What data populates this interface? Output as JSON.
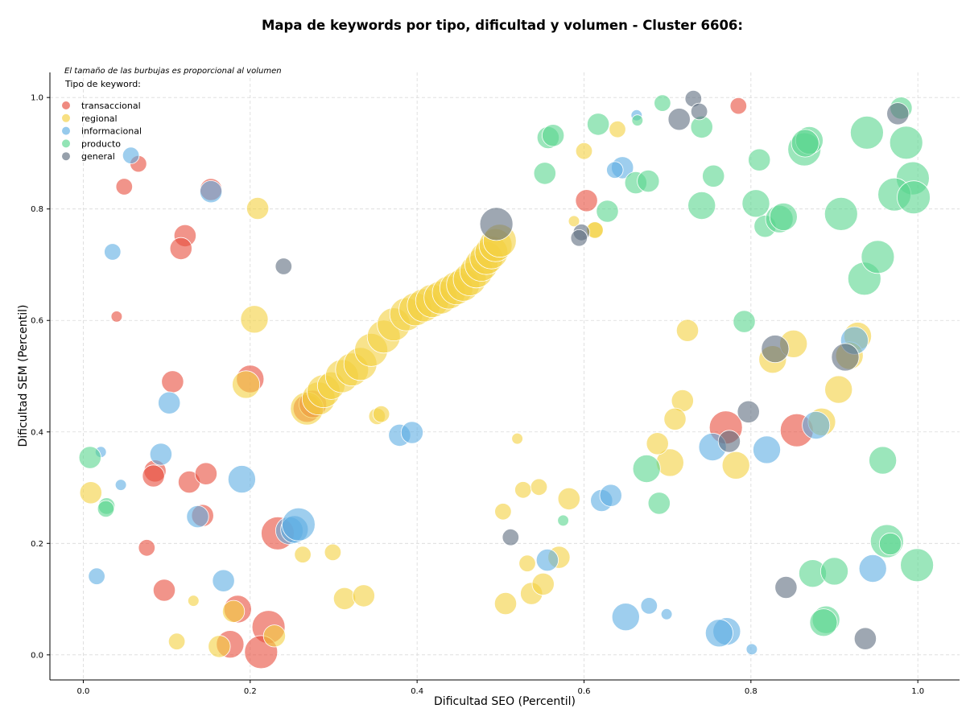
{
  "chart_data": {
    "type": "scatter",
    "title": "Mapa de keywords por tipo, dificultad y volumen - Cluster 6606:",
    "xlabel": "Dificultad SEO (Percentil)",
    "ylabel": "Dificultad SEM (Percentil)",
    "xlim": [
      -0.04,
      1.05
    ],
    "ylim": [
      -0.045,
      1.045
    ],
    "xticks": [
      "0.0",
      "0.2",
      "0.4",
      "0.6",
      "0.8",
      "1.0"
    ],
    "yticks": [
      "0.0",
      "0.2",
      "0.4",
      "0.6",
      "0.8",
      "1.0"
    ],
    "grid": true,
    "legend_placement": "top-left",
    "size_note": "El tamaño de las burbujas es proporcional al volumen",
    "legend_title": "Tipo de keyword:",
    "series": [
      {
        "name": "transaccional",
        "color": "#e74c3c",
        "points": [
          [
            0.066,
            0.881,
            2
          ],
          [
            0.049,
            0.84,
            2
          ],
          [
            0.153,
            0.835,
            3
          ],
          [
            0.122,
            0.752,
            3
          ],
          [
            0.117,
            0.729,
            3
          ],
          [
            0.04,
            0.607,
            1
          ],
          [
            0.107,
            0.49,
            3
          ],
          [
            0.2,
            0.495,
            4
          ],
          [
            0.268,
            0.442,
            4
          ],
          [
            0.275,
            0.45,
            4
          ],
          [
            0.086,
            0.33,
            3
          ],
          [
            0.084,
            0.321,
            3
          ],
          [
            0.127,
            0.31,
            3
          ],
          [
            0.147,
            0.325,
            3
          ],
          [
            0.143,
            0.25,
            3
          ],
          [
            0.233,
            0.218,
            5
          ],
          [
            0.076,
            0.192,
            2
          ],
          [
            0.097,
            0.116,
            3
          ],
          [
            0.185,
            0.082,
            4
          ],
          [
            0.222,
            0.05,
            5
          ],
          [
            0.176,
            0.019,
            4
          ],
          [
            0.213,
            0.005,
            5
          ],
          [
            0.603,
            0.815,
            3
          ],
          [
            0.785,
            0.985,
            2
          ],
          [
            0.77,
            0.408,
            5
          ],
          [
            0.855,
            0.403,
            5
          ]
        ]
      },
      {
        "name": "regional",
        "color": "#f4d03f",
        "points": [
          [
            0.209,
            0.801,
            3
          ],
          [
            0.205,
            0.602,
            4
          ],
          [
            0.195,
            0.485,
            4
          ],
          [
            0.009,
            0.291,
            3
          ],
          [
            0.263,
            0.18,
            2
          ],
          [
            0.299,
            0.184,
            2
          ],
          [
            0.313,
            0.101,
            3
          ],
          [
            0.336,
            0.106,
            3
          ],
          [
            0.18,
            0.078,
            3
          ],
          [
            0.229,
            0.034,
            3
          ],
          [
            0.163,
            0.015,
            3
          ],
          [
            0.112,
            0.024,
            2
          ],
          [
            0.132,
            0.097,
            1
          ],
          [
            0.352,
            0.428,
            2
          ],
          [
            0.357,
            0.432,
            2
          ],
          [
            0.52,
            0.388,
            1
          ],
          [
            0.503,
            0.257,
            2
          ],
          [
            0.527,
            0.296,
            2
          ],
          [
            0.546,
            0.301,
            2
          ],
          [
            0.582,
            0.28,
            3
          ],
          [
            0.532,
            0.164,
            2
          ],
          [
            0.537,
            0.11,
            3
          ],
          [
            0.551,
            0.127,
            3
          ],
          [
            0.57,
            0.175,
            3
          ],
          [
            0.506,
            0.092,
            3
          ],
          [
            0.613,
            0.763,
            2
          ],
          [
            0.613,
            0.762,
            2
          ],
          [
            0.6,
            0.904,
            2
          ],
          [
            0.64,
            0.943,
            2
          ],
          [
            0.588,
            0.778,
            1
          ],
          [
            0.724,
            0.582,
            3
          ],
          [
            0.718,
            0.456,
            3
          ],
          [
            0.709,
            0.423,
            3
          ],
          [
            0.703,
            0.345,
            4
          ],
          [
            0.688,
            0.379,
            3
          ],
          [
            0.782,
            0.34,
            4
          ],
          [
            0.826,
            0.53,
            4
          ],
          [
            0.851,
            0.558,
            4
          ],
          [
            0.885,
            0.418,
            4
          ],
          [
            0.905,
            0.476,
            4
          ],
          [
            0.928,
            0.572,
            4
          ],
          [
            0.918,
            0.537,
            4
          ],
          [
            0.268,
            0.442,
            5
          ],
          [
            0.282,
            0.46,
            5
          ],
          [
            0.288,
            0.473,
            5
          ],
          [
            0.297,
            0.483,
            4
          ],
          [
            0.31,
            0.5,
            5
          ],
          [
            0.322,
            0.512,
            5
          ],
          [
            0.332,
            0.522,
            5
          ],
          [
            0.345,
            0.547,
            5
          ],
          [
            0.36,
            0.571,
            5
          ],
          [
            0.372,
            0.593,
            5
          ],
          [
            0.387,
            0.611,
            5
          ],
          [
            0.398,
            0.62,
            5
          ],
          [
            0.408,
            0.627,
            5
          ],
          [
            0.418,
            0.635,
            5
          ],
          [
            0.428,
            0.641,
            5
          ],
          [
            0.438,
            0.65,
            5
          ],
          [
            0.447,
            0.658,
            5
          ],
          [
            0.455,
            0.664,
            5
          ],
          [
            0.463,
            0.674,
            5
          ],
          [
            0.471,
            0.688,
            5
          ],
          [
            0.477,
            0.7,
            5
          ],
          [
            0.483,
            0.712,
            5
          ],
          [
            0.489,
            0.722,
            5
          ],
          [
            0.494,
            0.735,
            5
          ],
          [
            0.499,
            0.743,
            5
          ]
        ]
      },
      {
        "name": "informacional",
        "color": "#5dade2",
        "points": [
          [
            0.057,
            0.896,
            2
          ],
          [
            0.153,
            0.831,
            3
          ],
          [
            0.035,
            0.723,
            2
          ],
          [
            0.103,
            0.452,
            3
          ],
          [
            0.093,
            0.36,
            3
          ],
          [
            0.021,
            0.364,
            1
          ],
          [
            0.045,
            0.305,
            1
          ],
          [
            0.137,
            0.248,
            3
          ],
          [
            0.19,
            0.315,
            4
          ],
          [
            0.247,
            0.223,
            4
          ],
          [
            0.253,
            0.225,
            4
          ],
          [
            0.258,
            0.234,
            5
          ],
          [
            0.168,
            0.133,
            3
          ],
          [
            0.016,
            0.141,
            2
          ],
          [
            0.379,
            0.394,
            3
          ],
          [
            0.394,
            0.399,
            3
          ],
          [
            0.556,
            0.17,
            3
          ],
          [
            0.621,
            0.277,
            3
          ],
          [
            0.632,
            0.286,
            3
          ],
          [
            0.65,
            0.068,
            4
          ],
          [
            0.678,
            0.088,
            2
          ],
          [
            0.699,
            0.073,
            1
          ],
          [
            0.646,
            0.874,
            3
          ],
          [
            0.663,
            0.968,
            1
          ],
          [
            0.637,
            0.87,
            2
          ],
          [
            0.771,
            0.042,
            4
          ],
          [
            0.762,
            0.039,
            4
          ],
          [
            0.801,
            0.01,
            1
          ],
          [
            0.754,
            0.373,
            4
          ],
          [
            0.819,
            0.368,
            4
          ],
          [
            0.878,
            0.412,
            4
          ],
          [
            0.924,
            0.564,
            4
          ],
          [
            0.946,
            0.155,
            4
          ]
        ]
      },
      {
        "name": "producto",
        "color": "#58d68d",
        "points": [
          [
            0.008,
            0.354,
            3
          ],
          [
            0.028,
            0.267,
            2
          ],
          [
            0.027,
            0.262,
            2
          ],
          [
            0.553,
            0.864,
            3
          ],
          [
            0.557,
            0.928,
            3
          ],
          [
            0.563,
            0.932,
            3
          ],
          [
            0.617,
            0.952,
            3
          ],
          [
            0.628,
            0.796,
            3
          ],
          [
            0.662,
            0.847,
            3
          ],
          [
            0.677,
            0.85,
            3
          ],
          [
            0.664,
            0.959,
            1
          ],
          [
            0.694,
            0.99,
            2
          ],
          [
            0.675,
            0.334,
            4
          ],
          [
            0.69,
            0.272,
            3
          ],
          [
            0.741,
            0.947,
            3
          ],
          [
            0.755,
            0.859,
            3
          ],
          [
            0.741,
            0.806,
            4
          ],
          [
            0.792,
            0.598,
            3
          ],
          [
            0.81,
            0.888,
            3
          ],
          [
            0.806,
            0.81,
            4
          ],
          [
            0.817,
            0.769,
            3
          ],
          [
            0.834,
            0.782,
            4
          ],
          [
            0.839,
            0.786,
            4
          ],
          [
            0.864,
            0.907,
            5
          ],
          [
            0.87,
            0.923,
            4
          ],
          [
            0.865,
            0.918,
            4
          ],
          [
            0.908,
            0.791,
            5
          ],
          [
            0.939,
            0.937,
            5
          ],
          [
            0.936,
            0.675,
            5
          ],
          [
            0.952,
            0.714,
            5
          ],
          [
            0.98,
            0.981,
            3
          ],
          [
            0.986,
            0.919,
            5
          ],
          [
            0.994,
            0.855,
            5
          ],
          [
            0.972,
            0.826,
            5
          ],
          [
            0.995,
            0.821,
            5
          ],
          [
            0.958,
            0.349,
            4
          ],
          [
            0.963,
            0.204,
            5
          ],
          [
            0.967,
            0.199,
            3
          ],
          [
            0.999,
            0.161,
            5
          ],
          [
            0.874,
            0.146,
            4
          ],
          [
            0.9,
            0.15,
            4
          ],
          [
            0.89,
            0.063,
            4
          ],
          [
            0.887,
            0.058,
            4
          ],
          [
            0.575,
            0.241,
            1
          ]
        ]
      },
      {
        "name": "general",
        "color": "#5d6d7e",
        "points": [
          [
            0.24,
            0.697,
            2
          ],
          [
            0.495,
            0.773,
            5
          ],
          [
            0.512,
            0.211,
            2
          ],
          [
            0.597,
            0.758,
            2
          ],
          [
            0.594,
            0.748,
            2
          ],
          [
            0.714,
            0.961,
            3
          ],
          [
            0.731,
            0.998,
            2
          ],
          [
            0.738,
            0.975,
            2
          ],
          [
            0.774,
            0.383,
            3
          ],
          [
            0.797,
            0.436,
            3
          ],
          [
            0.829,
            0.549,
            4
          ],
          [
            0.842,
            0.121,
            3
          ],
          [
            0.913,
            0.534,
            4
          ],
          [
            0.976,
            0.971,
            3
          ],
          [
            0.937,
            0.029,
            3
          ]
        ]
      }
    ]
  }
}
